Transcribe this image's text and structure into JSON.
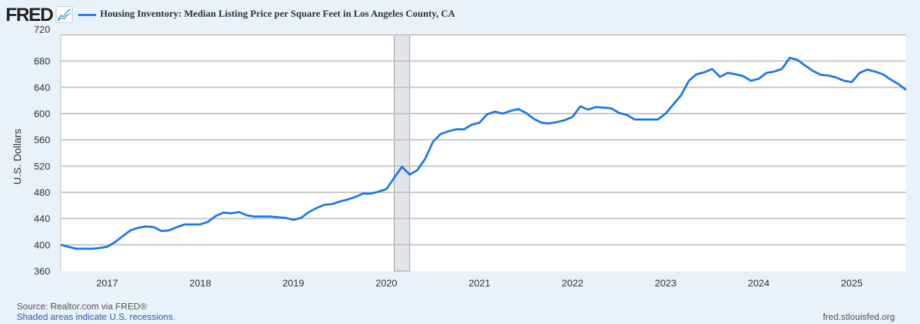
{
  "header": {
    "logo": "FRED",
    "series_title": "Housing Inventory: Median Listing Price per Square Feet in Los Angeles County, CA"
  },
  "footer": {
    "source": "Source: Realtor.com via FRED®",
    "recession_note": "Shaded areas indicate U.S. recessions.",
    "site": "fred.stlouisfed.org"
  },
  "colors": {
    "line": "#1a79e6",
    "recession": "#e1e5ea",
    "grid": "#c4c4c4"
  },
  "chart_data": {
    "type": "line",
    "title": "Housing Inventory: Median Listing Price per Square Feet in Los Angeles County, CA",
    "ylabel": "U.S. Dollars",
    "xlabel": "",
    "ylim": [
      360,
      720
    ],
    "yticks": [
      360,
      400,
      440,
      480,
      520,
      560,
      600,
      640,
      680,
      720
    ],
    "xticks": [
      "2017",
      "2018",
      "2019",
      "2020",
      "2021",
      "2022",
      "2023",
      "2024",
      "2025"
    ],
    "start": "2016-07",
    "frequency": "monthly",
    "recessions": [
      {
        "start": "2020-02",
        "end": "2020-04"
      }
    ],
    "series": [
      {
        "name": "Housing Inventory: Median Listing Price per Square Feet in Los Angeles County, CA",
        "values": [
          400,
          397,
          394,
          394,
          394,
          395,
          397,
          404,
          413,
          422,
          426,
          428,
          427,
          421,
          422,
          427,
          431,
          431,
          431,
          435,
          444,
          449,
          448,
          450,
          445,
          443,
          443,
          443,
          442,
          441,
          438,
          441,
          450,
          456,
          461,
          462,
          466,
          469,
          473,
          478,
          478,
          481,
          485,
          502,
          519,
          507,
          514,
          531,
          557,
          569,
          573,
          576,
          576,
          583,
          586,
          599,
          603,
          600,
          604,
          607,
          601,
          592,
          586,
          585,
          587,
          590,
          595,
          611,
          606,
          610,
          609,
          608,
          601,
          598,
          591,
          591,
          591,
          591,
          600,
          614,
          628,
          650,
          660,
          663,
          668,
          656,
          662,
          660,
          657,
          650,
          653,
          662,
          664,
          668,
          685,
          682,
          673,
          665,
          659,
          658,
          655,
          650,
          648,
          662,
          667,
          664,
          660,
          652,
          645,
          636
        ]
      }
    ]
  }
}
